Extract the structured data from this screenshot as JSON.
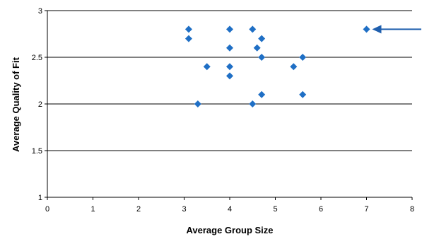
{
  "chart_data": {
    "type": "scatter",
    "title": "",
    "xlabel": "Average Group Size",
    "ylabel": "Average Quality of Fit",
    "xlim": [
      0,
      8
    ],
    "ylim": [
      1,
      3
    ],
    "x_ticks": [
      0,
      1,
      2,
      3,
      4,
      5,
      6,
      7,
      8
    ],
    "y_ticks": [
      1,
      1.5,
      2,
      2.5,
      3
    ],
    "x_tick_labels": [
      "0",
      "1",
      "2",
      "3",
      "4",
      "5",
      "6",
      "7",
      "8"
    ],
    "y_tick_labels": [
      "1",
      "1.5",
      "2",
      "2.5",
      "3"
    ],
    "grid": "horizontal",
    "marker": "diamond",
    "colors": {
      "marker": "#1f6fc5",
      "arrow": "#1f5fae",
      "gridline": "#000000"
    },
    "points": [
      {
        "x": 3.1,
        "y": 2.8
      },
      {
        "x": 3.1,
        "y": 2.7
      },
      {
        "x": 3.3,
        "y": 2.0
      },
      {
        "x": 3.5,
        "y": 2.4
      },
      {
        "x": 4.0,
        "y": 2.8
      },
      {
        "x": 4.0,
        "y": 2.6
      },
      {
        "x": 4.0,
        "y": 2.4
      },
      {
        "x": 4.0,
        "y": 2.3
      },
      {
        "x": 4.5,
        "y": 2.8
      },
      {
        "x": 4.5,
        "y": 2.0
      },
      {
        "x": 4.6,
        "y": 2.6
      },
      {
        "x": 4.7,
        "y": 2.7
      },
      {
        "x": 4.7,
        "y": 2.5
      },
      {
        "x": 4.7,
        "y": 2.1
      },
      {
        "x": 5.4,
        "y": 2.4
      },
      {
        "x": 5.6,
        "y": 2.5
      },
      {
        "x": 5.6,
        "y": 2.1
      },
      {
        "x": 7.0,
        "y": 2.8
      }
    ],
    "annotation": {
      "type": "arrow",
      "points_to": {
        "x": 7.0,
        "y": 2.8
      }
    }
  }
}
